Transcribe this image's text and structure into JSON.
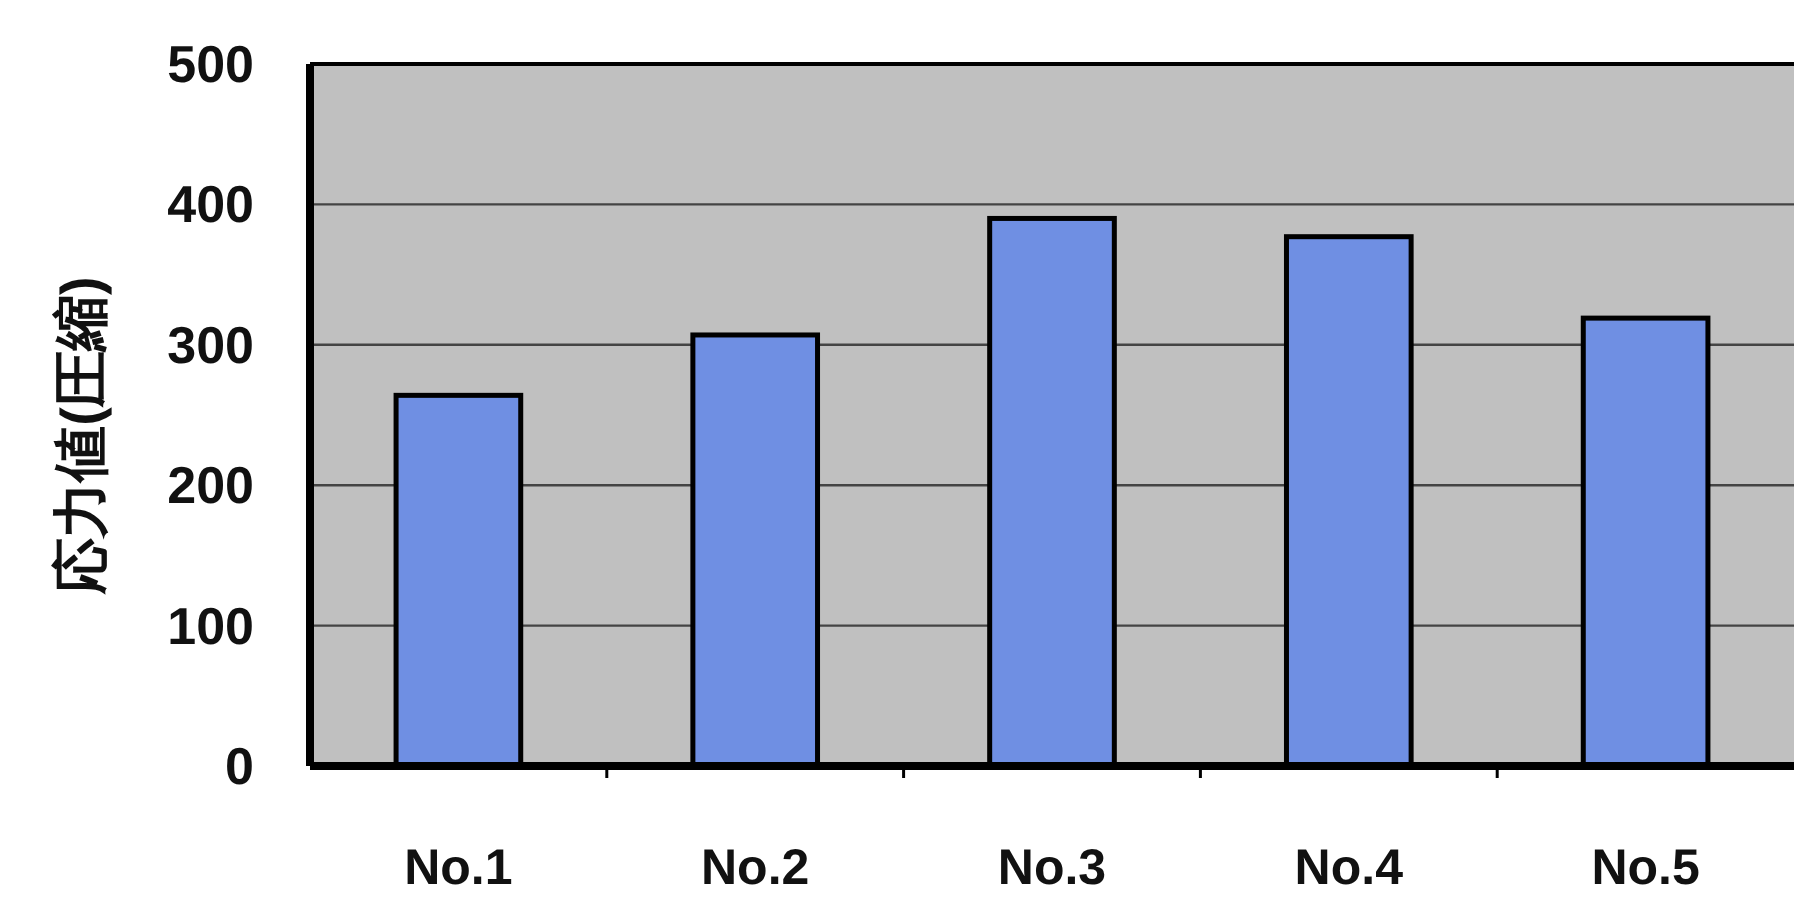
{
  "chart_data": {
    "type": "bar",
    "ylabel": "応力値(圧縮)",
    "categories": [
      "No.1",
      "No.2",
      "No.3",
      "No.4",
      "No.5"
    ],
    "values": [
      264,
      307,
      390,
      377,
      319
    ],
    "color": "#6f8fe3",
    "ylim": [
      0,
      500
    ],
    "yticks": [
      0,
      100,
      200,
      300,
      400,
      500
    ],
    "grid": "y"
  }
}
